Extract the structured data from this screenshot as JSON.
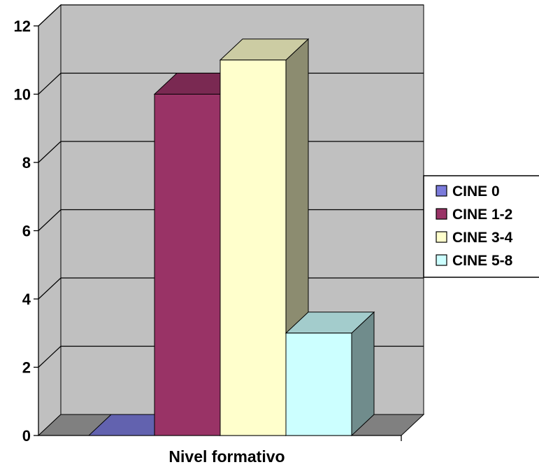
{
  "chart_data": {
    "type": "bar",
    "xlabel": "Nivel formativo",
    "ylabel": "",
    "ylim": [
      0,
      12
    ],
    "yticks": [
      "0",
      "2",
      "4",
      "6",
      "8",
      "10",
      "12"
    ],
    "grid": true,
    "style": "3d-column",
    "legend_position": "right",
    "series": [
      {
        "name": "CINE 0",
        "value": 0,
        "color": "#7B7BDB"
      },
      {
        "name": "CINE 1-2",
        "value": 10,
        "color": "#993366"
      },
      {
        "name": "CINE 3-4",
        "value": 11,
        "color": "#FFFFCC"
      },
      {
        "name": "CINE 5-8",
        "value": 3,
        "color": "#CCFFFF"
      }
    ]
  },
  "colors": {
    "wall": "#C0C0C0",
    "floor": "#808080",
    "grid": "#000000"
  }
}
